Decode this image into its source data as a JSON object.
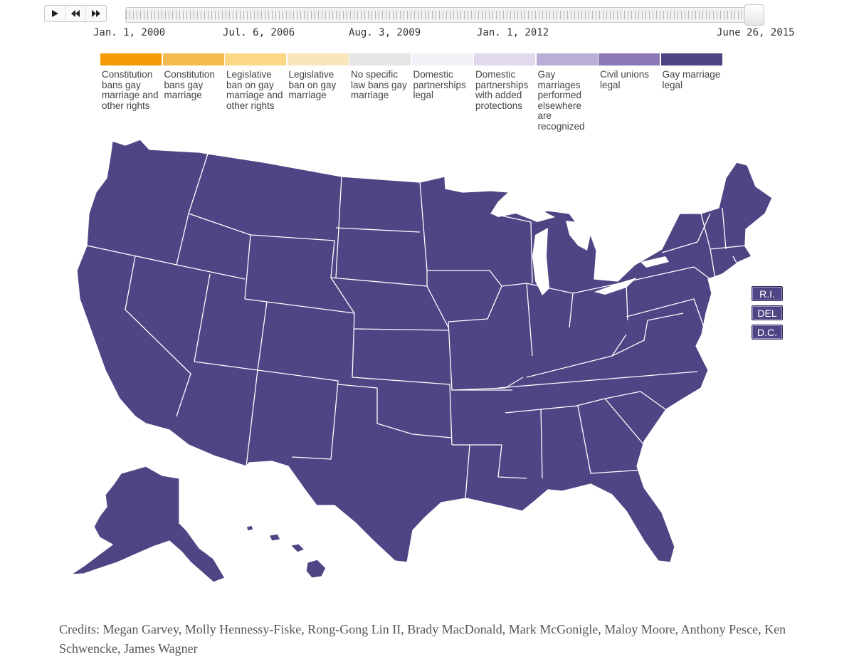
{
  "controls": {
    "play_icon": "play-icon",
    "back_icon": "rewind-icon",
    "forward_icon": "fast-forward-icon"
  },
  "timeline": {
    "ticks": [
      "Jan. 1, 2000",
      "Jul. 6, 2006",
      "Aug. 3, 2009",
      "Jan. 1, 2012",
      "June 26, 2015"
    ],
    "current": "June 26, 2015",
    "progress": 1.0
  },
  "legend": [
    {
      "label": "Constitution bans gay marriage and other rights",
      "color": "#f49a06"
    },
    {
      "label": "Constitution bans gay marriage",
      "color": "#f4bb4e"
    },
    {
      "label": "Legislative ban on gay marriage and other rights",
      "color": "#fad885"
    },
    {
      "label": "Legislative ban on gay marriage",
      "color": "#f9e6bc"
    },
    {
      "label": "No specific law bans gay marriage",
      "color": "#e5e5e5"
    },
    {
      "label": "Domestic partnerships legal",
      "color": "#f4f0f7"
    },
    {
      "label": "Domestic partnerships with added protections",
      "color": "#e1daec"
    },
    {
      "label": "Gay marriages performed elsewhere are recognized",
      "color": "#bbaed6"
    },
    {
      "label": "Civil unions legal",
      "color": "#8b78b5"
    },
    {
      "label": "Gay marriage legal",
      "color": "#4f4585"
    }
  ],
  "map": {
    "fill": "#4f4585",
    "status": "Gay marriage legal"
  },
  "small_states": [
    "R.I.",
    "DEL",
    "D.C."
  ],
  "credits": "Credits: Megan Garvey, Molly Hennessy-Fiske, Rong-Gong Lin II, Brady MacDonald, Mark McGonigle, Maloy Moore, Anthony Pesce, Ken Schwencke, James Wagner"
}
